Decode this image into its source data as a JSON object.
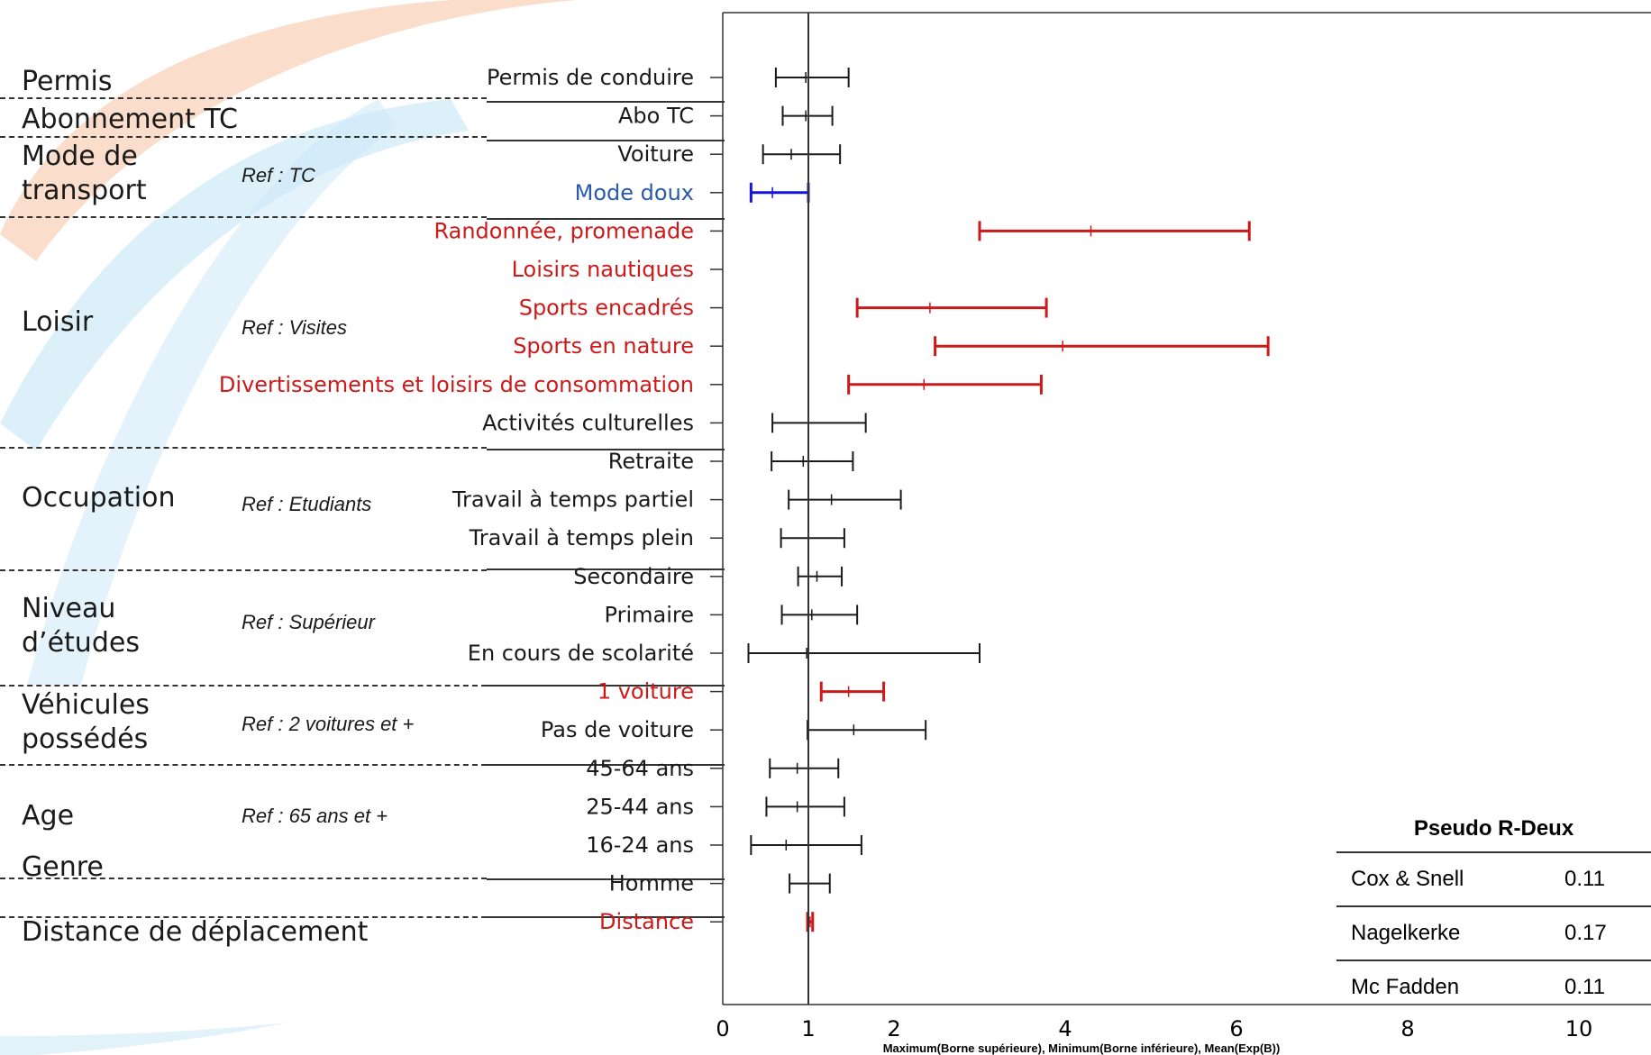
{
  "groups": [
    {
      "label": "Permis",
      "ref": ""
    },
    {
      "label": "Abonnement TC",
      "ref": ""
    },
    {
      "label": "Mode de\ntransport",
      "ref": "Ref : TC"
    },
    {
      "label": "Loisir",
      "ref": "Ref : Visites"
    },
    {
      "label": "Occupation",
      "ref": "Ref : Etudiants"
    },
    {
      "label": "Niveau\nd’études",
      "ref": "Ref : Supérieur"
    },
    {
      "label": "Véhicules\npossédés",
      "ref": "Ref : 2 voitures et +"
    },
    {
      "label": "Age",
      "ref": "Ref : 65 ans et +"
    },
    {
      "label": "Genre",
      "ref": ""
    },
    {
      "label": "Distance de déplacement",
      "ref": ""
    }
  ],
  "pseudo_r2": {
    "title": "Pseudo R-Deux",
    "rows": [
      {
        "name": "Cox & Snell",
        "value": "0.11"
      },
      {
        "name": "Nagelkerke",
        "value": "0.17"
      },
      {
        "name": "Mc Fadden",
        "value": "0.11"
      }
    ]
  },
  "chart_data": {
    "type": "errorbar",
    "xlabel": "Maximum(Borne supérieure), Minimum(Borne inférieure), Mean(Exp(B))",
    "xlim": [
      0,
      10
    ],
    "xticks": [
      0,
      1,
      2,
      4,
      6,
      8,
      10
    ],
    "reference_line_x": 1,
    "colors": {
      "default": "#1a1a1a",
      "significant_high": "#cc1a1a",
      "significant_low": "#1414dd",
      "label_blue": "#2a5aa8"
    },
    "rows": [
      {
        "label": "Permis de conduire",
        "lower": 0.62,
        "mean": 0.97,
        "upper": 1.47,
        "color": "default"
      },
      {
        "label": "Abo TC",
        "lower": 0.7,
        "mean": 0.97,
        "upper": 1.28,
        "color": "default"
      },
      {
        "label": "Voiture",
        "lower": 0.47,
        "mean": 0.8,
        "upper": 1.37,
        "color": "default"
      },
      {
        "label": "Mode doux",
        "lower": 0.33,
        "mean": 0.58,
        "upper": 1.0,
        "color": "significant_low"
      },
      {
        "label": "Randonnée, promenade",
        "lower": 3.0,
        "mean": 4.3,
        "upper": 6.15,
        "color": "significant_high"
      },
      {
        "label": "Loisirs nautiques",
        "lower": null,
        "mean": null,
        "upper": null,
        "color": "significant_high"
      },
      {
        "label": "Sports encadrés",
        "lower": 1.57,
        "mean": 2.42,
        "upper": 3.78,
        "color": "significant_high"
      },
      {
        "label": "Sports en nature",
        "lower": 2.48,
        "mean": 3.97,
        "upper": 6.37,
        "color": "significant_high"
      },
      {
        "label": "Divertissements et loisirs de consommation",
        "lower": 1.47,
        "mean": 2.35,
        "upper": 3.72,
        "color": "significant_high"
      },
      {
        "label": "Activités culturelles",
        "lower": 0.58,
        "mean": 1.0,
        "upper": 1.67,
        "color": "default"
      },
      {
        "label": "Retraite",
        "lower": 0.57,
        "mean": 0.94,
        "upper": 1.52,
        "color": "default"
      },
      {
        "label": "Travail à temps partiel",
        "lower": 0.77,
        "mean": 1.27,
        "upper": 2.08,
        "color": "default"
      },
      {
        "label": "Travail à temps plein",
        "lower": 0.68,
        "mean": 1.0,
        "upper": 1.42,
        "color": "default"
      },
      {
        "label": "Secondaire",
        "lower": 0.88,
        "mean": 1.1,
        "upper": 1.39,
        "color": "default"
      },
      {
        "label": "Primaire",
        "lower": 0.69,
        "mean": 1.04,
        "upper": 1.57,
        "color": "default"
      },
      {
        "label": "En cours de scolarité",
        "lower": 0.3,
        "mean": 0.98,
        "upper": 3.0,
        "color": "default"
      },
      {
        "label": "1 voiture",
        "lower": 1.15,
        "mean": 1.47,
        "upper": 1.88,
        "color": "significant_high"
      },
      {
        "label": "Pas de voiture",
        "lower": 0.99,
        "mean": 1.53,
        "upper": 2.37,
        "color": "default"
      },
      {
        "label": "45-64 ans",
        "lower": 0.55,
        "mean": 0.87,
        "upper": 1.35,
        "color": "default"
      },
      {
        "label": "25-44 ans",
        "lower": 0.51,
        "mean": 0.87,
        "upper": 1.42,
        "color": "default"
      },
      {
        "label": "16-24 ans",
        "lower": 0.33,
        "mean": 0.74,
        "upper": 1.62,
        "color": "default"
      },
      {
        "label": "Homme",
        "lower": 0.78,
        "mean": 1.0,
        "upper": 1.25,
        "color": "default"
      },
      {
        "label": "Distance",
        "lower": 0.99,
        "mean": 1.02,
        "upper": 1.05,
        "color": "significant_high"
      }
    ]
  }
}
